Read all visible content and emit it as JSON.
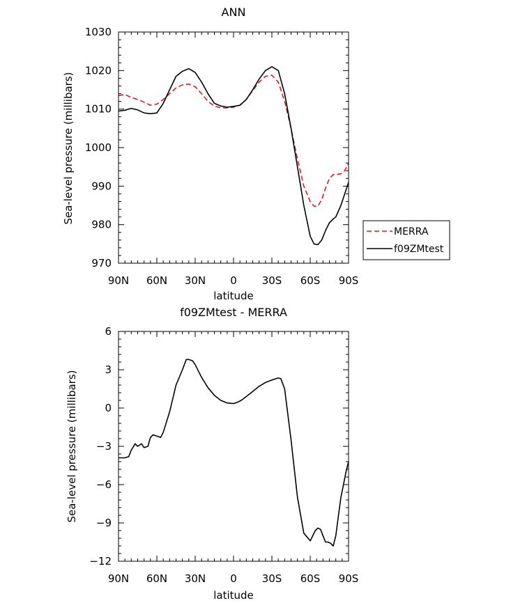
{
  "chart_data": [
    {
      "type": "line",
      "title": "ANN",
      "xlabel": "latitude",
      "ylabel": "Sea-level pressure (millibars)",
      "xlim": [
        90,
        -90
      ],
      "ylim": [
        970,
        1030
      ],
      "xticks": [
        90,
        60,
        30,
        0,
        -30,
        -60,
        -90
      ],
      "xtick_labels": [
        "90N",
        "60N",
        "30N",
        "0",
        "30S",
        "60S",
        "90S"
      ],
      "yticks": [
        970,
        980,
        990,
        1000,
        1010,
        1020,
        1030
      ],
      "ytick_labels": [
        "970",
        "980",
        "990",
        "1000",
        "1010",
        "1020",
        "1030"
      ],
      "legend": "right",
      "grid": false,
      "series": [
        {
          "name": "MERRA",
          "color": "#e8141c",
          "style": "dashed",
          "x": [
            90,
            85,
            80,
            75,
            70,
            65,
            60,
            55,
            50,
            45,
            40,
            35,
            30,
            25,
            20,
            15,
            10,
            5,
            0,
            -5,
            -10,
            -15,
            -20,
            -25,
            -30,
            -35,
            -40,
            -45,
            -50,
            -55,
            -60,
            -63,
            -66,
            -69,
            -72,
            -75,
            -78,
            -80,
            -84,
            -87,
            -90
          ],
          "y": [
            1013.5,
            1013.8,
            1013.0,
            1012.5,
            1011.8,
            1011.0,
            1011.3,
            1012.5,
            1014.0,
            1015.5,
            1016.3,
            1016.5,
            1015.8,
            1014.0,
            1012.0,
            1010.8,
            1010.3,
            1010.3,
            1010.5,
            1011.0,
            1012.5,
            1014.8,
            1017.0,
            1018.5,
            1018.8,
            1017.0,
            1012.0,
            1005.0,
            997.0,
            990.0,
            986.0,
            984.8,
            984.8,
            986.5,
            989.5,
            992.0,
            993.0,
            993.0,
            993.2,
            994.0,
            996.0
          ]
        },
        {
          "name": "f09ZMtest",
          "color": "#000000",
          "style": "solid",
          "x": [
            90,
            85,
            80,
            75,
            70,
            65,
            60,
            55,
            50,
            45,
            40,
            35,
            30,
            25,
            20,
            15,
            10,
            5,
            0,
            -5,
            -10,
            -15,
            -20,
            -25,
            -30,
            -35,
            -40,
            -45,
            -50,
            -55,
            -60,
            -63,
            -66,
            -69,
            -72,
            -75,
            -78,
            -80,
            -84,
            -87,
            -90
          ],
          "y": [
            1009.5,
            1009.7,
            1010.2,
            1009.8,
            1009.0,
            1008.8,
            1009.0,
            1011.5,
            1015.0,
            1018.5,
            1019.8,
            1020.5,
            1019.5,
            1017.0,
            1014.0,
            1011.5,
            1010.8,
            1010.5,
            1010.7,
            1011.0,
            1012.5,
            1015.0,
            1017.8,
            1020.0,
            1021.0,
            1020.0,
            1014.0,
            1005.0,
            995.0,
            985.0,
            977.0,
            975.0,
            974.8,
            976.0,
            978.5,
            980.5,
            981.5,
            982.0,
            985.0,
            988.0,
            991.0
          ]
        }
      ]
    },
    {
      "type": "line",
      "title": "f09ZMtest - MERRA",
      "xlabel": "latitude",
      "ylabel": "Sea-level pressure (millibars)",
      "xlim": [
        90,
        -90
      ],
      "ylim": [
        -12,
        6
      ],
      "xticks": [
        90,
        60,
        30,
        0,
        -30,
        -60,
        -90
      ],
      "xtick_labels": [
        "90N",
        "60N",
        "30N",
        "0",
        "30S",
        "60S",
        "90S"
      ],
      "yticks": [
        -12,
        -9,
        -6,
        -3,
        0,
        3,
        6
      ],
      "ytick_labels": [
        "−12",
        "−9",
        "−6",
        "−3",
        "0",
        "3",
        "6"
      ],
      "grid": false,
      "series": [
        {
          "color": "#000000",
          "style": "solid",
          "x": [
            90,
            85,
            82,
            80,
            77,
            75,
            72,
            70,
            67,
            65,
            63,
            60,
            57,
            55,
            50,
            45,
            40,
            37,
            35,
            32,
            30,
            27,
            25,
            20,
            15,
            10,
            5,
            0,
            -3,
            -6,
            -10,
            -15,
            -20,
            -25,
            -30,
            -35,
            -37,
            -40,
            -45,
            -50,
            -55,
            -60,
            -62,
            -64,
            -66,
            -68,
            -70,
            -72,
            -74,
            -76,
            -78,
            -80,
            -82,
            -84,
            -86,
            -88,
            -90
          ],
          "y": [
            -3.9,
            -3.9,
            -3.8,
            -3.3,
            -2.8,
            -3.0,
            -2.8,
            -3.1,
            -3.0,
            -2.3,
            -2.1,
            -2.2,
            -2.3,
            -1.9,
            -0.3,
            1.8,
            3.0,
            3.8,
            3.8,
            3.7,
            3.4,
            2.8,
            2.4,
            1.6,
            1.0,
            0.6,
            0.4,
            0.35,
            0.45,
            0.6,
            0.9,
            1.3,
            1.7,
            2.0,
            2.2,
            2.35,
            2.3,
            1.5,
            -2.5,
            -7.0,
            -9.8,
            -10.4,
            -10.0,
            -9.6,
            -9.4,
            -9.5,
            -10.0,
            -10.5,
            -10.5,
            -10.6,
            -10.8,
            -10.0,
            -8.5,
            -7.0,
            -6.0,
            -5.0,
            -4.2
          ]
        }
      ]
    }
  ]
}
